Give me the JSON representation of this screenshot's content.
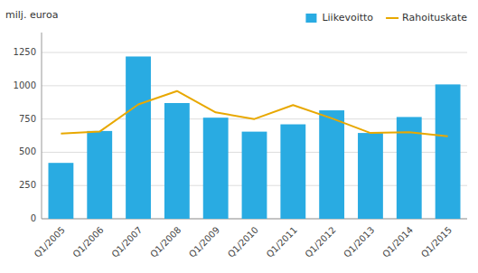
{
  "chart_data": {
    "type": "bar",
    "ylabel": "milj. euroa",
    "categories": [
      "Q1/2005",
      "Q1/2006",
      "Q1/2007",
      "Q1/2008",
      "Q1/2009",
      "Q1/2010",
      "Q1/2011",
      "Q1/2012",
      "Q1/2013",
      "Q1/2014",
      "Q1/2015"
    ],
    "series": [
      {
        "name": "Liikevoitto",
        "type": "bar",
        "color": "#29ABE2",
        "values": [
          420,
          660,
          1220,
          870,
          760,
          655,
          710,
          815,
          645,
          765,
          1010
        ]
      },
      {
        "name": "Rahoituskate",
        "type": "line",
        "color": "#E8A800",
        "values": [
          640,
          655,
          860,
          960,
          800,
          750,
          855,
          755,
          645,
          650,
          620
        ]
      }
    ],
    "ylim": [
      0,
      1400
    ],
    "yticks": [
      0,
      250,
      500,
      750,
      1000,
      1250
    ],
    "grid": true,
    "legend": "upper right"
  }
}
